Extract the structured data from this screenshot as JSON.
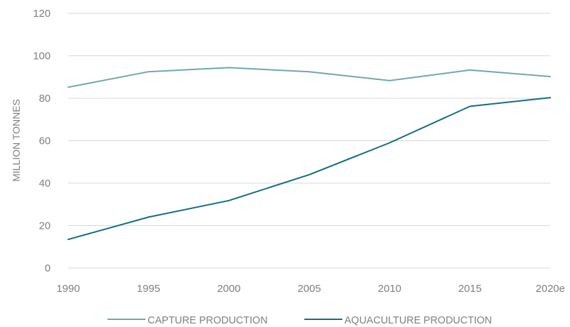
{
  "chart_data": {
    "type": "line",
    "ylabel": "MILLION TONNES",
    "xlabel": "",
    "ylim": [
      0,
      120
    ],
    "yticks": [
      "0",
      "20",
      "40",
      "60",
      "80",
      "100",
      "120"
    ],
    "categories": [
      "1990",
      "1995",
      "2000",
      "2005",
      "2010",
      "2015",
      "2020e"
    ],
    "grid": "horizontal",
    "legend_position": "bottom",
    "series": [
      {
        "name": "CAPTURE PRODUCTION",
        "color": "#6fa8a9",
        "values": [
          85.2,
          92.5,
          94.4,
          92.5,
          88.3,
          93.3,
          90.2
        ]
      },
      {
        "name": "AQUACULTURE PRODUCTION",
        "color": "#0f6e84",
        "values": [
          13.5,
          24.0,
          31.8,
          44.0,
          59.0,
          76.2,
          80.3
        ]
      }
    ]
  }
}
